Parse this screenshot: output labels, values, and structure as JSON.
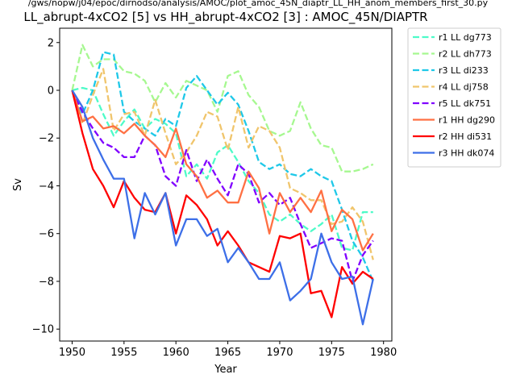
{
  "header": {
    "path": "/gws/nopw/j04/epoc/dirnodso/analysis/AMOC/plot_amoc_45N_diaptr_LL_HH_anom_members_first_30.py"
  },
  "chart_data": {
    "type": "line",
    "title": "LL_abrupt-4xCO2 [5] vs HH_abrupt-4xCO2 [3] : AMOC_45N/DIAPTR",
    "xlabel": "Year",
    "ylabel": "Sv",
    "xlim": [
      1948.8,
      1980.8
    ],
    "ylim": [
      -10.5,
      2.6
    ],
    "xticks": [
      1950,
      1955,
      1960,
      1965,
      1970,
      1975,
      1980
    ],
    "yticks": [
      2,
      0,
      -2,
      -4,
      -6,
      -8,
      -10
    ],
    "ytick_labels": [
      "2",
      "0",
      "−2",
      "−4",
      "−6",
      "−8",
      "−10"
    ],
    "grid": false,
    "legend_position": "outside-top-right",
    "series": [
      {
        "name": "r1 LL dg773",
        "color": "#4dfbc8",
        "style": "dashed",
        "x": [
          1950,
          1951,
          1952,
          1953,
          1954,
          1955,
          1956,
          1957,
          1958,
          1959,
          1960,
          1961,
          1962,
          1963,
          1964,
          1965,
          1966,
          1967,
          1968,
          1969,
          1970,
          1971,
          1972,
          1973,
          1974,
          1975,
          1976,
          1977,
          1978,
          1979
        ],
        "values": [
          0.0,
          0.1,
          0.0,
          -1.0,
          -1.9,
          -1.3,
          -0.8,
          -1.6,
          -1.2,
          -1.4,
          -1.8,
          -3.6,
          -3.1,
          -3.7,
          -2.6,
          -2.3,
          -3.0,
          -3.8,
          -4.3,
          -5.2,
          -5.5,
          -5.2,
          -5.6,
          -5.9,
          -5.6,
          -5.2,
          -6.6,
          -6.7,
          -5.1,
          -5.1
        ]
      },
      {
        "name": "r2 LL dh773",
        "color": "#a6f890",
        "style": "dashed",
        "x": [
          1950,
          1951,
          1952,
          1953,
          1954,
          1955,
          1956,
          1957,
          1958,
          1959,
          1960,
          1961,
          1962,
          1963,
          1964,
          1965,
          1966,
          1967,
          1968,
          1969,
          1970,
          1971,
          1972,
          1973,
          1974,
          1975,
          1976,
          1977,
          1978,
          1979
        ],
        "values": [
          0.0,
          1.9,
          1.0,
          1.3,
          1.3,
          0.8,
          0.7,
          0.4,
          -0.5,
          0.3,
          -0.3,
          0.4,
          0.2,
          0.0,
          -0.9,
          0.6,
          0.8,
          -0.2,
          -0.7,
          -1.7,
          -1.9,
          -1.7,
          -0.5,
          -1.6,
          -2.3,
          -2.4,
          -3.4,
          -3.4,
          -3.3,
          -3.1
        ]
      },
      {
        "name": "r3 LL di233",
        "color": "#1ec8e8",
        "style": "dashed",
        "x": [
          1950,
          1951,
          1952,
          1953,
          1954,
          1955,
          1956,
          1957,
          1958,
          1959,
          1960,
          1961,
          1962,
          1963,
          1964,
          1965,
          1966,
          1967,
          1968,
          1969,
          1970,
          1971,
          1972,
          1973,
          1974,
          1975,
          1976,
          1977,
          1978,
          1979
        ],
        "values": [
          0.0,
          -1.0,
          0.0,
          1.6,
          1.5,
          -0.9,
          -1.3,
          -1.6,
          -1.9,
          -1.2,
          -1.5,
          0.1,
          0.6,
          0.0,
          -0.6,
          -0.1,
          -0.6,
          -1.7,
          -3.0,
          -3.3,
          -3.1,
          -3.5,
          -3.6,
          -3.3,
          -3.6,
          -3.8,
          -5.0,
          -6.3,
          -7.0,
          -8.0
        ]
      },
      {
        "name": "r4 LL dj758",
        "color": "#f0c56c",
        "style": "dashed",
        "x": [
          1950,
          1951,
          1952,
          1953,
          1954,
          1955,
          1956,
          1957,
          1958,
          1959,
          1960,
          1961,
          1962,
          1963,
          1964,
          1965,
          1966,
          1967,
          1968,
          1969,
          1970,
          1971,
          1972,
          1973,
          1974,
          1975,
          1976,
          1977,
          1978,
          1979
        ],
        "values": [
          0.0,
          -1.4,
          -0.2,
          0.9,
          -1.7,
          -1.0,
          -0.9,
          -1.9,
          -0.4,
          -1.8,
          -3.1,
          -2.6,
          -1.9,
          -0.9,
          -1.1,
          -2.5,
          -0.7,
          -2.4,
          -1.5,
          -1.7,
          -2.4,
          -4.1,
          -4.3,
          -4.6,
          -4.6,
          -5.6,
          -5.5,
          -4.9,
          -5.5,
          -7.1
        ]
      },
      {
        "name": "r5 LL dk751",
        "color": "#8000ff",
        "style": "dashed",
        "x": [
          1950,
          1951,
          1952,
          1953,
          1954,
          1955,
          1956,
          1957,
          1958,
          1959,
          1960,
          1961,
          1962,
          1963,
          1964,
          1965,
          1966,
          1967,
          1968,
          1969,
          1970,
          1971,
          1972,
          1973,
          1974,
          1975,
          1976,
          1977,
          1978,
          1979
        ],
        "values": [
          0.0,
          -0.9,
          -1.6,
          -2.2,
          -2.4,
          -2.8,
          -2.8,
          -1.9,
          -2.3,
          -3.6,
          -4.0,
          -2.5,
          -3.8,
          -2.9,
          -3.7,
          -4.4,
          -3.1,
          -3.5,
          -4.7,
          -4.3,
          -4.8,
          -4.5,
          -5.6,
          -6.6,
          -6.4,
          -6.2,
          -6.3,
          -8.0,
          -6.9,
          -6.3
        ]
      },
      {
        "name": "r1 HH dg290",
        "color": "#ff7043",
        "style": "solid",
        "x": [
          1950,
          1951,
          1952,
          1953,
          1954,
          1955,
          1956,
          1957,
          1958,
          1959,
          1960,
          1961,
          1962,
          1963,
          1964,
          1965,
          1966,
          1967,
          1968,
          1969,
          1970,
          1971,
          1972,
          1973,
          1974,
          1975,
          1976,
          1977,
          1978,
          1979
        ],
        "values": [
          0.0,
          -1.3,
          -1.1,
          -1.6,
          -1.5,
          -1.8,
          -1.4,
          -1.9,
          -2.3,
          -2.8,
          -1.6,
          -3.1,
          -3.6,
          -4.5,
          -4.2,
          -4.7,
          -4.7,
          -3.4,
          -4.1,
          -6.0,
          -4.3,
          -5.1,
          -4.5,
          -5.1,
          -4.2,
          -5.9,
          -5.0,
          -5.4,
          -6.7,
          -6.0
        ]
      },
      {
        "name": "r2 HH di531",
        "color": "#ff0000",
        "style": "solid",
        "x": [
          1950,
          1951,
          1952,
          1953,
          1954,
          1955,
          1956,
          1957,
          1958,
          1959,
          1960,
          1961,
          1962,
          1963,
          1964,
          1965,
          1966,
          1967,
          1968,
          1969,
          1970,
          1971,
          1972,
          1973,
          1974,
          1975,
          1976,
          1977,
          1978,
          1979
        ],
        "values": [
          0.0,
          -1.8,
          -3.3,
          -4.0,
          -4.9,
          -3.8,
          -4.5,
          -5.0,
          -5.1,
          -4.3,
          -6.0,
          -4.4,
          -4.8,
          -5.4,
          -6.5,
          -5.9,
          -6.5,
          -7.2,
          -7.4,
          -7.6,
          -6.1,
          -6.2,
          -6.0,
          -8.5,
          -8.4,
          -9.5,
          -7.4,
          -8.1,
          -7.6,
          -7.9
        ]
      },
      {
        "name": "r3 HH dk074",
        "color": "#3d6fe8",
        "style": "solid",
        "x": [
          1950,
          1951,
          1952,
          1953,
          1954,
          1955,
          1956,
          1957,
          1958,
          1959,
          1960,
          1961,
          1962,
          1963,
          1964,
          1965,
          1966,
          1967,
          1968,
          1969,
          1970,
          1971,
          1972,
          1973,
          1974,
          1975,
          1976,
          1977,
          1978,
          1979
        ],
        "values": [
          0.0,
          -0.7,
          -2.0,
          -2.9,
          -3.7,
          -3.7,
          -6.2,
          -4.3,
          -5.2,
          -4.3,
          -6.5,
          -5.4,
          -5.4,
          -6.1,
          -5.8,
          -7.2,
          -6.6,
          -7.2,
          -7.9,
          -7.9,
          -7.2,
          -8.8,
          -8.4,
          -7.9,
          -6.0,
          -7.2,
          -7.9,
          -7.8,
          -9.8,
          -7.9
        ]
      }
    ]
  }
}
